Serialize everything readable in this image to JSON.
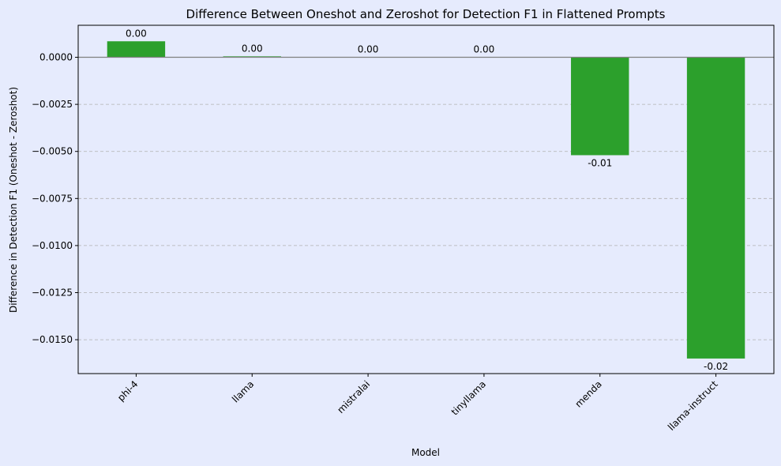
{
  "chart_data": {
    "type": "bar",
    "title": "Difference Between Oneshot and Zeroshot for Detection F1 in Flattened Prompts",
    "xlabel": "Model",
    "ylabel": "Difference in Detection F1 (Oneshot - Zeroshot)",
    "categories": [
      "phi-4",
      "llama",
      "mistralai",
      "tinyllama",
      "menda",
      "llama-instruct"
    ],
    "values": [
      0.00085,
      5e-05,
      0.0,
      0.0,
      -0.0052,
      -0.016
    ],
    "data_labels": [
      "0.00",
      "0.00",
      "0.00",
      "0.00",
      "-0.01",
      "-0.02"
    ],
    "yticks": [
      0.0,
      -0.0025,
      -0.005,
      -0.0075,
      -0.01,
      -0.0125,
      -0.015
    ],
    "ytick_labels": [
      "0.0000",
      "−0.0025",
      "−0.0050",
      "−0.0075",
      "−0.0100",
      "−0.0125",
      "−0.0150"
    ],
    "ylim": [
      -0.0168,
      0.0017
    ],
    "grid": "horizontal-dashed",
    "colors": {
      "bar": "#2ca02c",
      "background": "#e6ebfd",
      "grid": "#b0b0b0",
      "zero_line": "#808080"
    }
  }
}
